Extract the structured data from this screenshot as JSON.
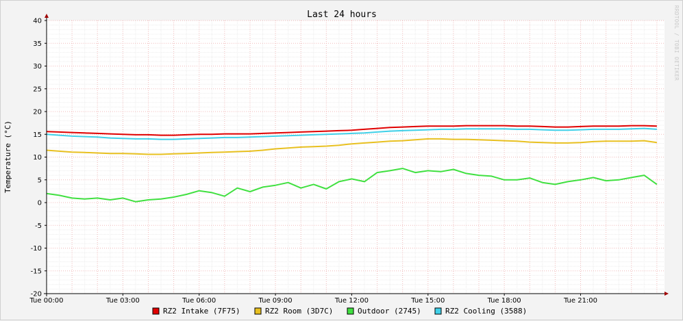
{
  "chart_data": {
    "type": "line",
    "title": "Last 24 hours",
    "ylabel": "Temperature (°C)",
    "xlabel": "",
    "watermark": "RRDTOOL / TOBI OETIKER",
    "ylim": [
      -20,
      40
    ],
    "yticks": [
      40,
      35,
      30,
      25,
      20,
      15,
      10,
      5,
      0,
      -5,
      -10,
      -15,
      -20
    ],
    "xlim": [
      0,
      24.3
    ],
    "xticks": [
      {
        "value": 0,
        "label": "Tue 00:00"
      },
      {
        "value": 3,
        "label": "Tue 03:00"
      },
      {
        "value": 6,
        "label": "Tue 06:00"
      },
      {
        "value": 9,
        "label": "Tue 09:00"
      },
      {
        "value": 12,
        "label": "Tue 12:00"
      },
      {
        "value": 15,
        "label": "Tue 15:00"
      },
      {
        "value": 18,
        "label": "Tue 18:00"
      },
      {
        "value": 21,
        "label": "Tue 21:00"
      }
    ],
    "grid": true,
    "legend_position": "bottom",
    "series": [
      {
        "name": "RZ2 Intake (7F75)",
        "color": "#e00000",
        "x": [
          0,
          0.5,
          1,
          1.5,
          2,
          2.5,
          3,
          3.5,
          4,
          4.5,
          5,
          5.5,
          6,
          6.5,
          7,
          7.5,
          8,
          8.5,
          9,
          9.5,
          10,
          10.5,
          11,
          11.5,
          12,
          12.5,
          13,
          13.5,
          14,
          14.5,
          15,
          15.5,
          16,
          16.5,
          17,
          17.5,
          18,
          18.5,
          19,
          19.5,
          20,
          20.5,
          21,
          21.5,
          22,
          22.5,
          23,
          23.5,
          24
        ],
        "y": [
          15.6,
          15.5,
          15.4,
          15.3,
          15.2,
          15.1,
          15.0,
          14.9,
          14.9,
          14.8,
          14.8,
          14.9,
          15.0,
          15.0,
          15.1,
          15.1,
          15.1,
          15.2,
          15.3,
          15.4,
          15.5,
          15.6,
          15.7,
          15.8,
          15.9,
          16.1,
          16.3,
          16.5,
          16.6,
          16.7,
          16.8,
          16.8,
          16.8,
          16.9,
          16.9,
          16.9,
          16.9,
          16.8,
          16.8,
          16.7,
          16.6,
          16.6,
          16.7,
          16.8,
          16.8,
          16.8,
          16.9,
          16.9,
          16.8
        ]
      },
      {
        "name": "RZ2 Room (3D7C)",
        "color": "#e8c020",
        "x": [
          0,
          0.5,
          1,
          1.5,
          2,
          2.5,
          3,
          3.5,
          4,
          4.5,
          5,
          5.5,
          6,
          6.5,
          7,
          7.5,
          8,
          8.5,
          9,
          9.5,
          10,
          10.5,
          11,
          11.5,
          12,
          12.5,
          13,
          13.5,
          14,
          14.5,
          15,
          15.5,
          16,
          16.5,
          17,
          17.5,
          18,
          18.5,
          19,
          19.5,
          20,
          20.5,
          21,
          21.5,
          22,
          22.5,
          23,
          23.5,
          24
        ],
        "y": [
          11.5,
          11.3,
          11.1,
          11.0,
          10.9,
          10.8,
          10.8,
          10.7,
          10.6,
          10.6,
          10.7,
          10.8,
          10.9,
          11.0,
          11.1,
          11.2,
          11.3,
          11.5,
          11.8,
          12.0,
          12.2,
          12.3,
          12.4,
          12.6,
          12.9,
          13.1,
          13.3,
          13.5,
          13.6,
          13.8,
          14.0,
          14.0,
          13.9,
          13.9,
          13.8,
          13.7,
          13.6,
          13.5,
          13.3,
          13.2,
          13.1,
          13.1,
          13.2,
          13.4,
          13.5,
          13.5,
          13.5,
          13.6,
          13.2
        ]
      },
      {
        "name": "Outdoor (2745)",
        "color": "#40e040",
        "x": [
          0,
          0.5,
          1,
          1.5,
          2,
          2.5,
          3,
          3.5,
          4,
          4.5,
          5,
          5.5,
          6,
          6.5,
          7,
          7.5,
          8,
          8.5,
          9,
          9.5,
          10,
          10.5,
          11,
          11.5,
          12,
          12.5,
          13,
          13.5,
          14,
          14.5,
          15,
          15.5,
          16,
          16.5,
          17,
          17.5,
          18,
          18.5,
          19,
          19.5,
          20,
          20.5,
          21,
          21.5,
          22,
          22.5,
          23,
          23.5,
          24
        ],
        "y": [
          2.0,
          1.6,
          1.0,
          0.8,
          1.0,
          0.6,
          1.0,
          0.2,
          0.6,
          0.8,
          1.2,
          1.8,
          2.6,
          2.2,
          1.4,
          3.2,
          2.4,
          3.4,
          3.8,
          4.4,
          3.2,
          4.0,
          3.0,
          4.6,
          5.2,
          4.6,
          6.6,
          7.0,
          7.5,
          6.6,
          7.0,
          6.8,
          7.3,
          6.4,
          6.0,
          5.8,
          5.0,
          5.0,
          5.4,
          4.4,
          4.0,
          4.6,
          5.0,
          5.5,
          4.8,
          5.0,
          5.5,
          6.0,
          4.0
        ]
      },
      {
        "name": "RZ2 Cooling (3588)",
        "color": "#40d0e8",
        "x": [
          0,
          0.5,
          1,
          1.5,
          2,
          2.5,
          3,
          3.5,
          4,
          4.5,
          5,
          5.5,
          6,
          6.5,
          7,
          7.5,
          8,
          8.5,
          9,
          9.5,
          10,
          10.5,
          11,
          11.5,
          12,
          12.5,
          13,
          13.5,
          14,
          14.5,
          15,
          15.5,
          16,
          16.5,
          17,
          17.5,
          18,
          18.5,
          19,
          19.5,
          20,
          20.5,
          21,
          21.5,
          22,
          22.5,
          23,
          23.5,
          24
        ],
        "y": [
          15.0,
          14.8,
          14.6,
          14.5,
          14.4,
          14.2,
          14.1,
          14.0,
          14.0,
          13.9,
          13.9,
          14.0,
          14.1,
          14.2,
          14.3,
          14.3,
          14.4,
          14.5,
          14.6,
          14.7,
          14.8,
          14.9,
          15.0,
          15.1,
          15.2,
          15.3,
          15.5,
          15.7,
          15.8,
          15.9,
          16.0,
          16.1,
          16.1,
          16.2,
          16.2,
          16.2,
          16.2,
          16.1,
          16.1,
          16.0,
          15.9,
          15.9,
          16.0,
          16.1,
          16.1,
          16.1,
          16.2,
          16.3,
          16.1
        ]
      }
    ]
  }
}
